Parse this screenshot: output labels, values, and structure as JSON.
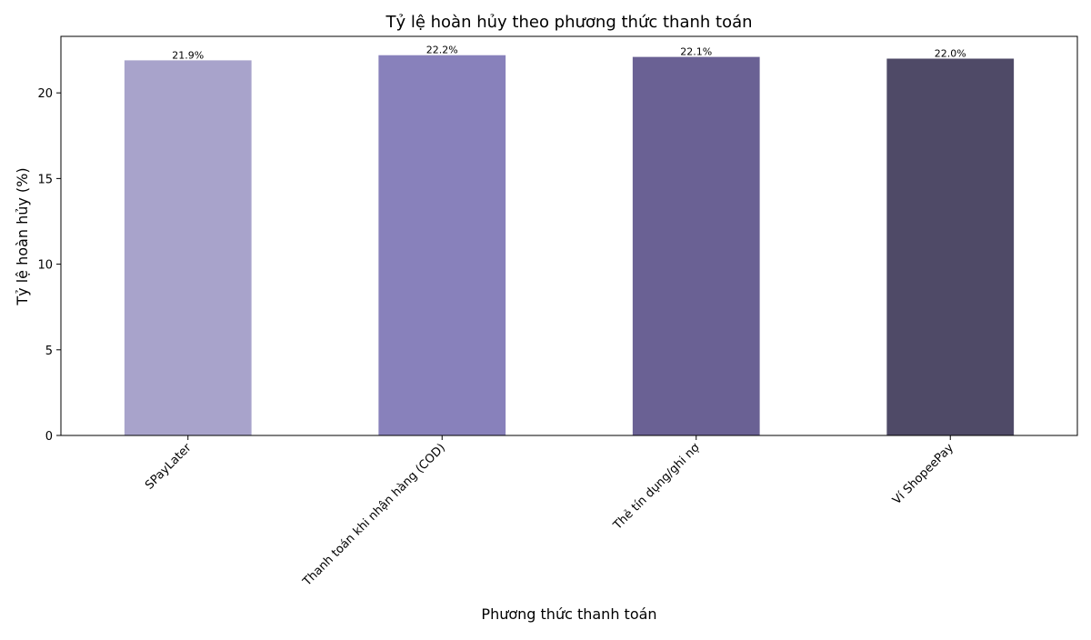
{
  "chart_data": {
    "type": "bar",
    "title": "Tỷ lệ hoàn hủy theo phương thức thanh toán",
    "xlabel": "Phương thức thanh toán",
    "ylabel": "Tỷ lệ hoàn hủy (%)",
    "categories": [
      "SPayLater",
      "Thanh toán khi nhận hàng (COD)",
      "Thẻ tín dụng/ghi nợ",
      "Ví ShopeePay"
    ],
    "values": [
      21.9,
      22.2,
      22.1,
      22.0
    ],
    "value_labels": [
      "21.9%",
      "22.2%",
      "22.1%",
      "22.0%"
    ],
    "colors": [
      "#a8a3cb",
      "#8881bb",
      "#6a6194",
      "#4f4a67"
    ],
    "ylim": [
      0,
      23.3
    ],
    "yticks": [
      0,
      5,
      10,
      15,
      20
    ],
    "xtick_rotation": 45,
    "grid": false,
    "legend": "none"
  }
}
